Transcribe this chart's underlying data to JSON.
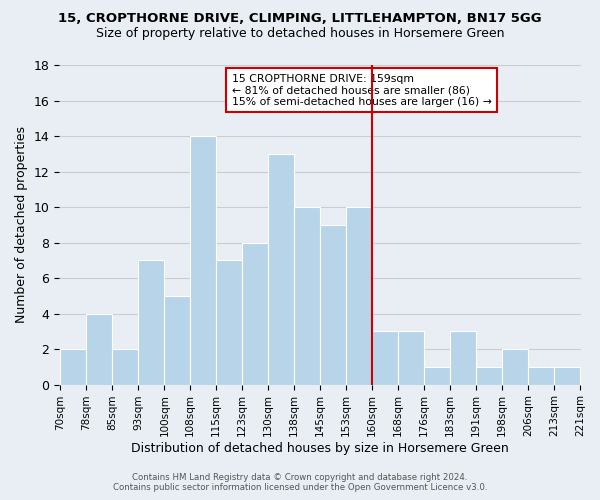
{
  "title1": "15, CROPTHORNE DRIVE, CLIMPING, LITTLEHAMPTON, BN17 5GG",
  "title2": "Size of property relative to detached houses in Horsemere Green",
  "xlabel": "Distribution of detached houses by size in Horsemere Green",
  "ylabel": "Number of detached properties",
  "footer1": "Contains HM Land Registry data © Crown copyright and database right 2024.",
  "footer2": "Contains public sector information licensed under the Open Government Licence v3.0.",
  "bin_labels": [
    "70sqm",
    "78sqm",
    "85sqm",
    "93sqm",
    "100sqm",
    "108sqm",
    "115sqm",
    "123sqm",
    "130sqm",
    "138sqm",
    "145sqm",
    "153sqm",
    "160sqm",
    "168sqm",
    "176sqm",
    "183sqm",
    "191sqm",
    "198sqm",
    "206sqm",
    "213sqm",
    "221sqm"
  ],
  "counts": [
    2,
    4,
    2,
    7,
    5,
    14,
    7,
    8,
    13,
    10,
    9,
    10,
    3,
    3,
    1,
    3,
    1,
    2,
    1,
    1
  ],
  "bar_color": "#b8d4e8",
  "bar_edge_color": "#ffffff",
  "grid_color": "#cccccc",
  "vline_color": "#cc0000",
  "vline_pos": 12.0,
  "annotation_title": "15 CROPTHORNE DRIVE: 159sqm",
  "annotation_line1": "← 81% of detached houses are smaller (86)",
  "annotation_line2": "15% of semi-detached houses are larger (16) →",
  "annotation_box_color": "#ffffff",
  "annotation_box_edge": "#cc0000",
  "ylim": [
    0,
    18
  ],
  "yticks": [
    0,
    2,
    4,
    6,
    8,
    10,
    12,
    14,
    16,
    18
  ],
  "background_color": "#e8eef4"
}
